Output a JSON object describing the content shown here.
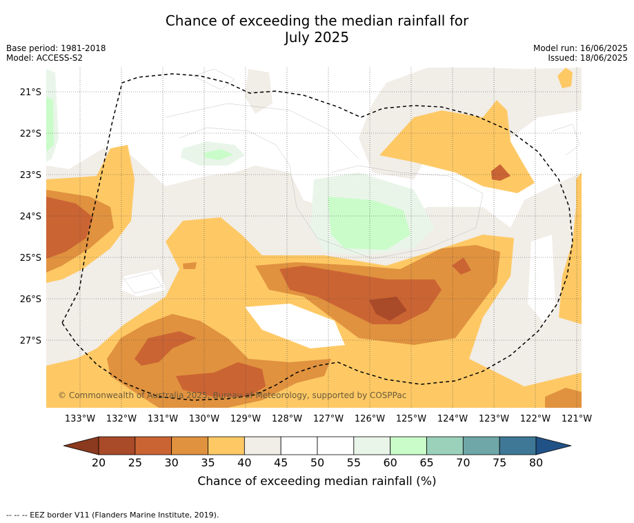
{
  "title": {
    "line1": "Chance of exceeding the median rainfall for",
    "line2": "July 2025"
  },
  "meta_left": {
    "base_period": "Base period: 1981-2018",
    "model": "Model: ACCESS-S2"
  },
  "meta_right": {
    "model_run": "Model run: 16/06/2025",
    "issued": "Issued: 18/06/2025"
  },
  "copyright": "© Commonwealth of Australia 2025, Bureau of Meteorology, supported by COSPPac",
  "lat_labels": [
    "21°S",
    "22°S",
    "23°S",
    "24°S",
    "25°S",
    "26°S",
    "27°S"
  ],
  "lon_labels": [
    "133°W",
    "132°W",
    "131°W",
    "130°W",
    "129°W",
    "128°W",
    "127°W",
    "126°W",
    "125°W",
    "124°W",
    "123°W",
    "122°W",
    "121°W"
  ],
  "colorbar": {
    "ticks": [
      "20",
      "25",
      "30",
      "35",
      "40",
      "45",
      "50",
      "55",
      "60",
      "65",
      "70",
      "75",
      "80"
    ],
    "colors": [
      "#a94a28",
      "#cb6433",
      "#e0923f",
      "#fec965",
      "#f1ede7",
      "#ffffff",
      "#ffffff",
      "#e9f5e9",
      "#c9fcc9",
      "#9bd1bb",
      "#6fa7a8",
      "#3e7896"
    ],
    "under_color": "#8b3a1f",
    "over_color": "#215287",
    "label": "Chance of exceeding median rainfall (%)"
  },
  "footnote": "-- -- -- EEZ border V11 (Flanders Marine Institute, 2019)."
}
